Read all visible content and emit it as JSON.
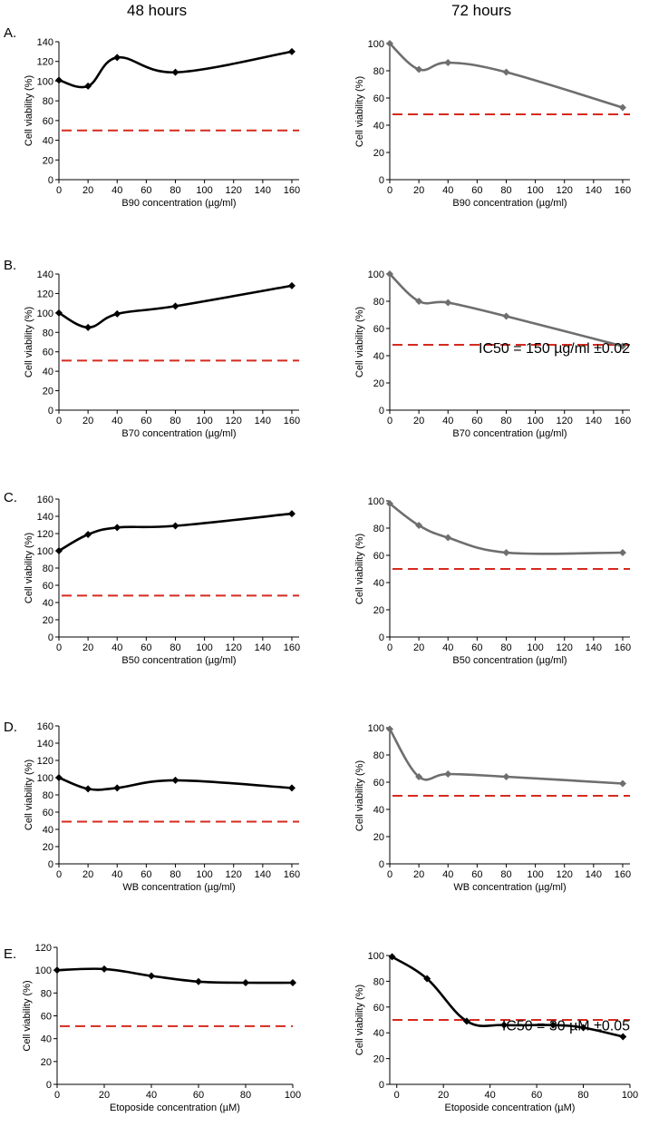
{
  "header": {
    "col_48": "48 hours",
    "col_72": "72 hours"
  },
  "rows": [
    {
      "label": "A."
    },
    {
      "label": "B."
    },
    {
      "label": "C."
    },
    {
      "label": "D."
    },
    {
      "label": "E."
    }
  ],
  "colors": {
    "series_black": "#000000",
    "series_grey": "#6e6e6e",
    "threshold": "#d62a1e"
  },
  "chart_data": [
    {
      "id": "A48",
      "type": "line",
      "title": "",
      "xlabel": "B90 concentration (µg/ml)",
      "ylabel": "Cell viability (%)",
      "xlim": [
        0,
        165
      ],
      "ylim": [
        0,
        140
      ],
      "xticks": [
        0,
        20,
        40,
        60,
        80,
        100,
        120,
        140,
        160
      ],
      "yticks": [
        0,
        20,
        40,
        60,
        80,
        100,
        120,
        140
      ],
      "x": [
        0,
        20,
        40,
        80,
        160
      ],
      "y": [
        101,
        95,
        124,
        109,
        130
      ],
      "threshold": 50,
      "color": "#000000",
      "annotation": ""
    },
    {
      "id": "A72",
      "type": "line",
      "title": "",
      "xlabel": "B90 concentration (µg/ml)",
      "ylabel": "Cell viability (%)",
      "xlim": [
        0,
        165
      ],
      "ylim": [
        0,
        100
      ],
      "xticks": [
        0,
        20,
        40,
        60,
        80,
        100,
        120,
        140,
        160
      ],
      "yticks": [
        0,
        20,
        40,
        60,
        80,
        100
      ],
      "x": [
        0,
        20,
        40,
        80,
        160
      ],
      "y": [
        100,
        81,
        86,
        79,
        53
      ],
      "threshold": 48,
      "color": "#6e6e6e",
      "annotation": ""
    },
    {
      "id": "B48",
      "type": "line",
      "title": "",
      "xlabel": "B70 concentration (µg/ml)",
      "ylabel": "Cell viability (%)",
      "xlim": [
        0,
        165
      ],
      "ylim": [
        0,
        140
      ],
      "xticks": [
        0,
        20,
        40,
        60,
        80,
        100,
        120,
        140,
        160
      ],
      "yticks": [
        0,
        20,
        40,
        60,
        80,
        100,
        120,
        140
      ],
      "x": [
        0,
        20,
        40,
        80,
        160
      ],
      "y": [
        100,
        85,
        99,
        107,
        128
      ],
      "threshold": 51,
      "color": "#000000",
      "annotation": ""
    },
    {
      "id": "B72",
      "type": "line",
      "title": "",
      "xlabel": "B70 concentration (µg/ml)",
      "ylabel": "Cell viability (%)",
      "xlim": [
        0,
        165
      ],
      "ylim": [
        0,
        100
      ],
      "xticks": [
        0,
        20,
        40,
        60,
        80,
        100,
        120,
        140,
        160
      ],
      "yticks": [
        0,
        20,
        40,
        60,
        80,
        100
      ],
      "x": [
        0,
        20,
        40,
        80,
        160
      ],
      "y": [
        100,
        80,
        79,
        69,
        47
      ],
      "threshold": 48,
      "color": "#6e6e6e",
      "annotation": "IC50 = 150 µg/ml ±0.02"
    },
    {
      "id": "C48",
      "type": "line",
      "title": "",
      "xlabel": "B50 concentration (µg/ml)",
      "ylabel": "Cell viability (%)",
      "xlim": [
        0,
        165
      ],
      "ylim": [
        0,
        160
      ],
      "xticks": [
        0,
        20,
        40,
        60,
        80,
        100,
        120,
        140,
        160
      ],
      "yticks": [
        0,
        20,
        40,
        60,
        80,
        100,
        120,
        140,
        160
      ],
      "x": [
        0,
        20,
        40,
        80,
        160
      ],
      "y": [
        100,
        119,
        127,
        129,
        143
      ],
      "threshold": 48,
      "color": "#000000",
      "annotation": ""
    },
    {
      "id": "C72",
      "type": "line",
      "title": "",
      "xlabel": "B50 concentration (µg/ml)",
      "ylabel": "Cell viability (%)",
      "xlim": [
        0,
        165
      ],
      "ylim": [
        0,
        100
      ],
      "xticks": [
        0,
        20,
        40,
        60,
        80,
        100,
        120,
        140,
        160
      ],
      "yticks": [
        0,
        20,
        40,
        60,
        80,
        100
      ],
      "x": [
        0,
        20,
        40,
        80,
        160
      ],
      "y": [
        98,
        82,
        73,
        62,
        62
      ],
      "threshold": 50,
      "color": "#6e6e6e",
      "annotation": ""
    },
    {
      "id": "D48",
      "type": "line",
      "title": "",
      "xlabel": "WB concentration (µg/ml)",
      "ylabel": "Cell viability (%)",
      "xlim": [
        0,
        165
      ],
      "ylim": [
        0,
        160
      ],
      "xticks": [
        0,
        20,
        40,
        60,
        80,
        100,
        120,
        140,
        160
      ],
      "yticks": [
        0,
        20,
        40,
        60,
        80,
        100,
        120,
        140,
        160
      ],
      "x": [
        0,
        20,
        40,
        80,
        160
      ],
      "y": [
        100,
        87,
        88,
        97,
        88
      ],
      "threshold": 49,
      "color": "#000000",
      "annotation": ""
    },
    {
      "id": "D72",
      "type": "line",
      "title": "",
      "xlabel": "WB concentration (µg/ml)",
      "ylabel": "Cell viability (%)",
      "xlim": [
        0,
        165
      ],
      "ylim": [
        0,
        100
      ],
      "xticks": [
        0,
        20,
        40,
        60,
        80,
        100,
        120,
        140,
        160
      ],
      "yticks": [
        0,
        20,
        40,
        60,
        80,
        100
      ],
      "x": [
        0,
        20,
        40,
        80,
        160
      ],
      "y": [
        99,
        64,
        66,
        64,
        59
      ],
      "threshold": 50,
      "color": "#6e6e6e",
      "annotation": ""
    },
    {
      "id": "E48",
      "type": "line",
      "title": "",
      "xlabel": "Etoposide concentration (µM)",
      "ylabel": "Cell viability (%)",
      "xlim": [
        0,
        100
      ],
      "ylim": [
        0,
        120
      ],
      "xticks": [
        0,
        20,
        40,
        60,
        80,
        100
      ],
      "yticks": [
        0,
        20,
        40,
        60,
        80,
        100,
        120
      ],
      "x": [
        0,
        20,
        40,
        60,
        80,
        100
      ],
      "y": [
        100,
        101,
        95,
        90,
        89,
        89
      ],
      "threshold": 51,
      "color": "#000000",
      "annotation": ""
    },
    {
      "id": "E72",
      "type": "line",
      "title": "",
      "xlabel": "Etoposide concentration (µM)",
      "ylabel": "Cell viability (%)",
      "xlim": [
        -3,
        100
      ],
      "ylim": [
        0,
        100
      ],
      "xticks": [
        0,
        20,
        40,
        60,
        80,
        100
      ],
      "yticks": [
        0,
        20,
        40,
        60,
        80,
        100
      ],
      "x": [
        -2,
        13,
        30,
        46,
        67,
        80,
        97
      ],
      "y": [
        99,
        82,
        49,
        46,
        46,
        44,
        37
      ],
      "threshold": 50,
      "color": "#000000",
      "annotation": "IC50 = 30 µM ±0.05"
    }
  ]
}
